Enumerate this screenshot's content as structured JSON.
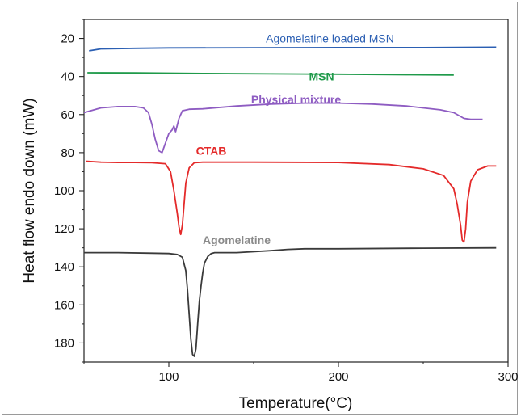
{
  "chart_data": {
    "type": "line",
    "xlabel": "Temperature(°C)",
    "ylabel": "Heat flow endo down (mW)",
    "xlim": [
      50,
      300
    ],
    "ylim": [
      190,
      10
    ],
    "y_inverted": true,
    "grid": false,
    "legend": "inline labels",
    "xticks": [
      100,
      200,
      300
    ],
    "yticks": [
      20,
      40,
      60,
      80,
      100,
      120,
      140,
      160,
      180
    ],
    "series": [
      {
        "name": "Agomelatine loaded MSN",
        "color": "#2b5fb3",
        "label_bold": false,
        "label_pos": [
          195,
          20
        ],
        "x": [
          53,
          60,
          80,
          100,
          150,
          200,
          250,
          293
        ],
        "y": [
          26.5,
          25.5,
          25.2,
          25,
          24.9,
          24.8,
          24.8,
          24.6
        ]
      },
      {
        "name": "MSN",
        "color": "#1f9a4a",
        "label_bold": true,
        "label_pos": [
          190,
          40
        ],
        "x": [
          52,
          80,
          120,
          160,
          200,
          240,
          268
        ],
        "y": [
          38,
          38.1,
          38.4,
          38.6,
          38.8,
          39.1,
          39.2
        ]
      },
      {
        "name": "Physical mixture",
        "color": "#8e5cc2",
        "label_bold": true,
        "label_pos": [
          175,
          52
        ],
        "x": [
          50,
          60,
          70,
          80,
          85,
          88,
          90,
          92,
          94,
          96,
          98,
          100,
          102,
          103,
          104,
          106,
          108,
          112,
          120,
          140,
          160,
          180,
          200,
          220,
          240,
          260,
          268,
          272,
          274,
          278,
          285
        ],
        "y": [
          59,
          56.5,
          55.8,
          55.8,
          56.5,
          59,
          65,
          73,
          79,
          80,
          75,
          70,
          68,
          66,
          69,
          62,
          58,
          57.2,
          57,
          55.5,
          54.5,
          54,
          54,
          54.5,
          55.5,
          57.5,
          59,
          61,
          62,
          62.5,
          62.5
        ]
      },
      {
        "name": "CTAB",
        "color": "#e42a2a",
        "label_bold": true,
        "label_pos": [
          125,
          79
        ],
        "x": [
          51,
          60,
          70,
          80,
          90,
          98,
          101,
          103,
          105,
          106,
          107,
          108,
          109,
          110,
          112,
          115,
          120,
          150,
          200,
          230,
          250,
          262,
          268,
          270,
          272,
          273,
          274,
          275,
          276,
          278,
          282,
          288,
          293
        ],
        "y": [
          84.5,
          85,
          85.2,
          85.2,
          85.3,
          85.8,
          90,
          100,
          112,
          119,
          123,
          118,
          107,
          96,
          88,
          85.3,
          85,
          85,
          85.2,
          86.3,
          88.5,
          92,
          99,
          107,
          118,
          126,
          127,
          120,
          106,
          95,
          89,
          87,
          87
        ]
      },
      {
        "name": "Agomelatine",
        "color": "#3a3a3a",
        "label_color": "#8a8a8a",
        "label_bold": true,
        "label_pos": [
          140,
          126
        ],
        "x": [
          50,
          70,
          90,
          100,
          105,
          108,
          110,
          111,
          112,
          113,
          114,
          115,
          116,
          117,
          118,
          119,
          120,
          121,
          123,
          125,
          127,
          130,
          140,
          160,
          170,
          180,
          200,
          250,
          293
        ],
        "y": [
          132.5,
          132.5,
          132.8,
          133,
          133.5,
          135,
          142,
          152,
          165,
          178,
          186,
          187,
          183,
          170,
          158,
          150,
          143,
          138,
          134.5,
          133,
          132.5,
          132.5,
          132.5,
          131.5,
          130.8,
          130.5,
          130.5,
          130.2,
          130
        ]
      }
    ]
  }
}
